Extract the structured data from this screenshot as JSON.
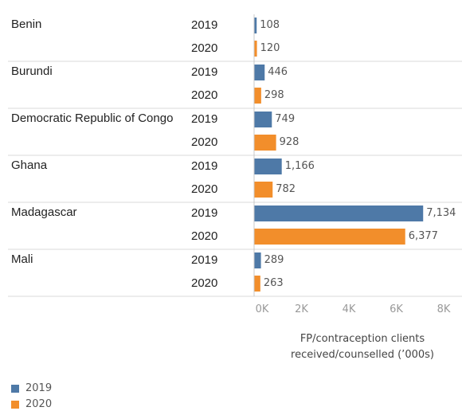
{
  "chart_data": {
    "type": "bar",
    "orientation": "horizontal",
    "categories": [
      "Benin",
      "Burundi",
      "Democratic Republic of Congo",
      "Ghana",
      "Madagascar",
      "Mali"
    ],
    "series": [
      {
        "name": "2019",
        "color": "#4e79a7",
        "values": [
          108,
          446,
          749,
          1166,
          7134,
          289
        ],
        "value_labels": [
          "108",
          "446",
          "749",
          "1,166",
          "7,134",
          "289"
        ]
      },
      {
        "name": "2020",
        "color": "#f28e2b",
        "values": [
          120,
          298,
          928,
          782,
          6377,
          263
        ],
        "value_labels": [
          "120",
          "298",
          "928",
          "782",
          "6,377",
          "263"
        ]
      }
    ],
    "xlim": [
      0,
      8000
    ],
    "xticks": [
      {
        "value": 0,
        "label": "0K"
      },
      {
        "value": 2000,
        "label": "2K"
      },
      {
        "value": 4000,
        "label": "4K"
      },
      {
        "value": 6000,
        "label": "6K"
      },
      {
        "value": 8000,
        "label": "8K"
      }
    ],
    "x_axis_label": "FP/contraception clients received/counselled (’000s)"
  }
}
